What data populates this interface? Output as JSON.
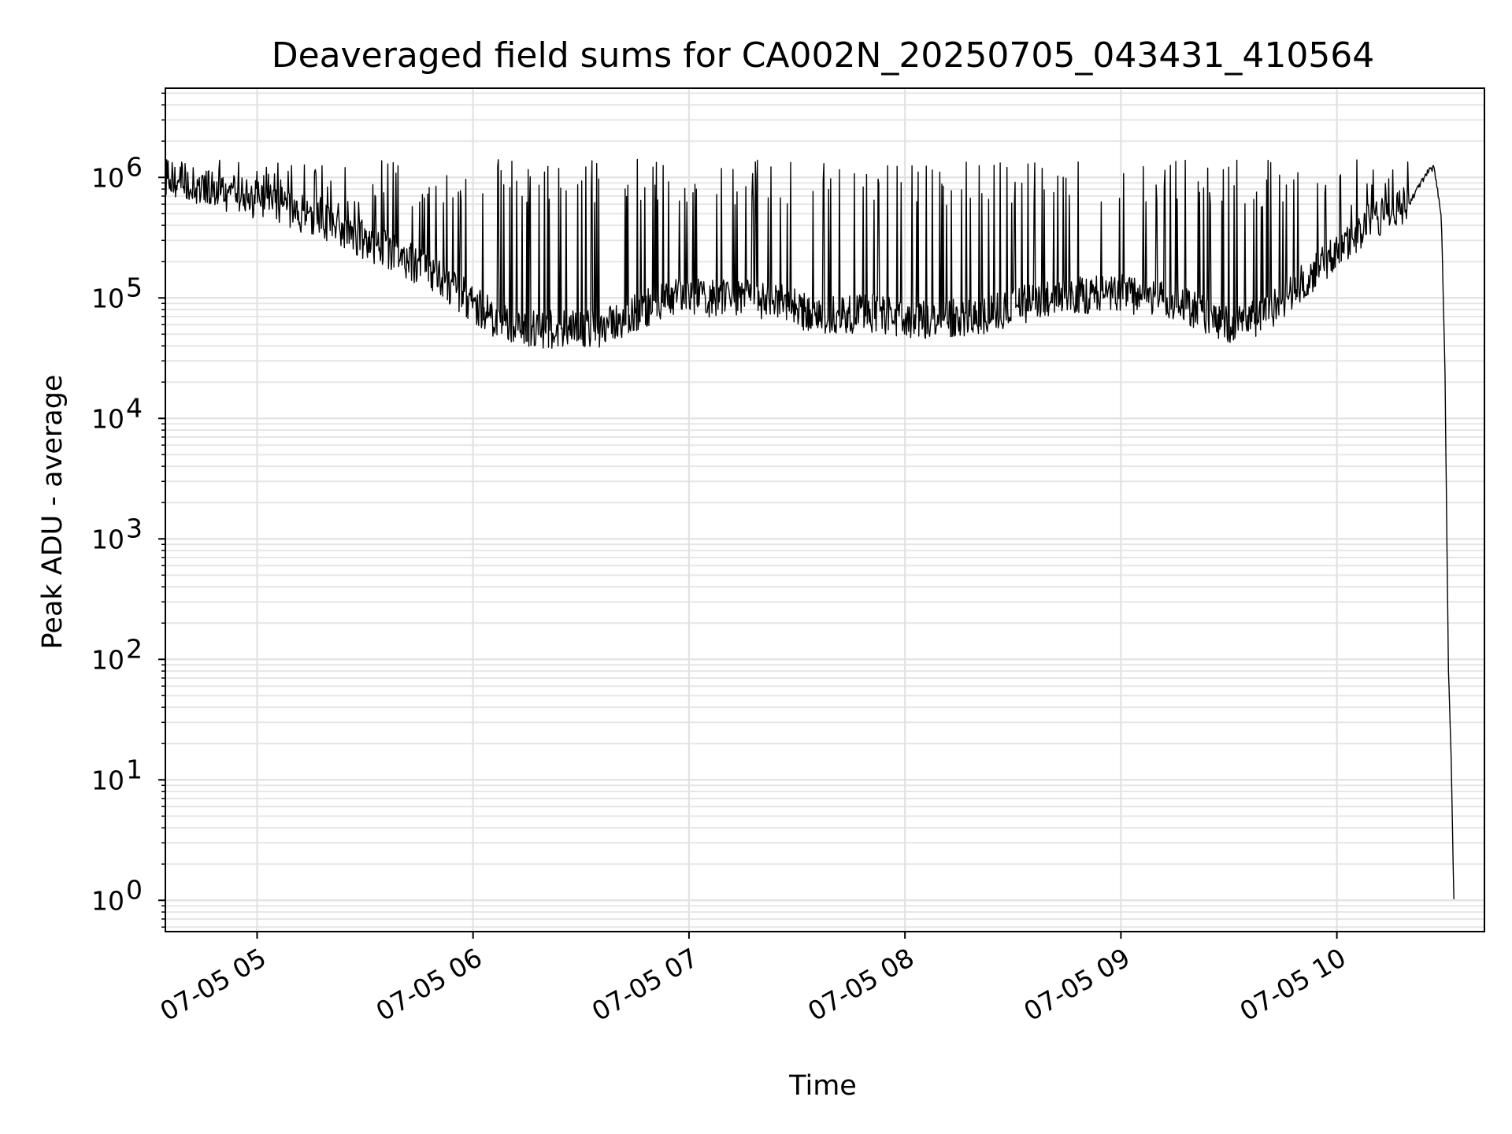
{
  "chart_data": {
    "type": "line",
    "title": "Deaveraged field sums for CA002N_20250705_043431_410564",
    "xlabel": "Time",
    "ylabel": "Peak ADU - average",
    "y_scale": "log",
    "grid": true,
    "line_color": "#000000",
    "xlim": [
      "2025-07-05 04:34:31",
      "2025-07-05 10:41:00"
    ],
    "ylim": [
      0.55,
      5500000
    ],
    "x_ticks": [
      {
        "value": "2025-07-05 05:00:00",
        "label": "07-05 05"
      },
      {
        "value": "2025-07-05 06:00:00",
        "label": "07-05 06"
      },
      {
        "value": "2025-07-05 07:00:00",
        "label": "07-05 07"
      },
      {
        "value": "2025-07-05 08:00:00",
        "label": "07-05 08"
      },
      {
        "value": "2025-07-05 09:00:00",
        "label": "07-05 09"
      },
      {
        "value": "2025-07-05 10:00:00",
        "label": "07-05 10"
      }
    ],
    "y_ticks": [
      {
        "value": 1,
        "base": "10",
        "exp": "0"
      },
      {
        "value": 10,
        "base": "10",
        "exp": "1"
      },
      {
        "value": 100,
        "base": "10",
        "exp": "2"
      },
      {
        "value": 1000,
        "base": "10",
        "exp": "3"
      },
      {
        "value": 10000,
        "base": "10",
        "exp": "4"
      },
      {
        "value": 100000,
        "base": "10",
        "exp": "5"
      },
      {
        "value": 1000000,
        "base": "10",
        "exp": "6"
      }
    ],
    "series": [
      {
        "points": [
          [
            "2025-07-05 04:34:31",
            1000000
          ],
          [
            "2025-07-05 04:48:00",
            800000
          ],
          [
            "2025-07-05 05:00:00",
            650000
          ],
          [
            "2025-07-05 05:10:00",
            520000
          ],
          [
            "2025-07-05 05:20:00",
            420000
          ],
          [
            "2025-07-05 05:30:00",
            300000
          ],
          [
            "2025-07-05 05:40:00",
            220000
          ],
          [
            "2025-07-05 05:50:00",
            150000
          ],
          [
            "2025-07-05 06:00:00",
            90000
          ],
          [
            "2025-07-05 06:08:00",
            60000
          ],
          [
            "2025-07-05 06:20:00",
            55000
          ],
          [
            "2025-07-05 06:35:00",
            55000
          ],
          [
            "2025-07-05 06:45:00",
            75000
          ],
          [
            "2025-07-05 06:55:00",
            100000
          ],
          [
            "2025-07-05 07:10:00",
            100000
          ],
          [
            "2025-07-05 07:25:00",
            95000
          ],
          [
            "2025-07-05 07:35:00",
            70000
          ],
          [
            "2025-07-05 07:50:00",
            75000
          ],
          [
            "2025-07-05 08:05:00",
            65000
          ],
          [
            "2025-07-05 08:20:00",
            70000
          ],
          [
            "2025-07-05 08:40:00",
            100000
          ],
          [
            "2025-07-05 09:00:00",
            110000
          ],
          [
            "2025-07-05 09:15:00",
            90000
          ],
          [
            "2025-07-05 09:30:00",
            60000
          ],
          [
            "2025-07-05 09:40:00",
            70000
          ],
          [
            "2025-07-05 09:50:00",
            130000
          ],
          [
            "2025-07-05 10:00:00",
            250000
          ],
          [
            "2025-07-05 10:10:00",
            450000
          ],
          [
            "2025-07-05 10:20:00",
            600000
          ],
          [
            "2025-07-05 10:25:00",
            1100000
          ],
          [
            "2025-07-05 10:27:00",
            1200000
          ],
          [
            "2025-07-05 10:29:00",
            500000
          ],
          [
            "2025-07-05 10:30:00",
            30000
          ],
          [
            "2025-07-05 10:31:00",
            80
          ],
          [
            "2025-07-05 10:31:40",
            20
          ],
          [
            "2025-07-05 10:32:30",
            1
          ]
        ]
      }
    ]
  }
}
